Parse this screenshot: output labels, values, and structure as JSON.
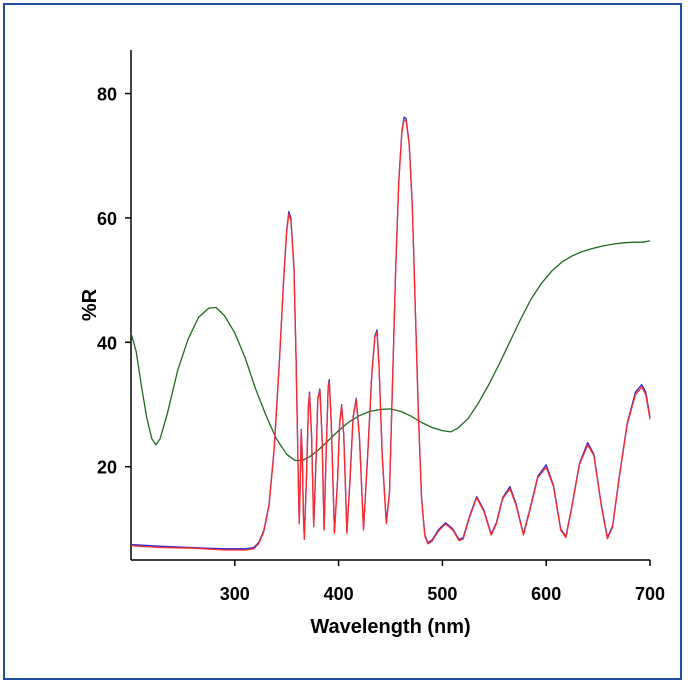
{
  "chart_data": {
    "type": "line",
    "title": "",
    "xlabel": "Wavelength (nm)",
    "ylabel": "%R",
    "xlim": [
      200,
      700
    ],
    "ylim": [
      5,
      87
    ],
    "x_ticks": [
      300,
      400,
      500,
      600,
      700
    ],
    "y_ticks": [
      20,
      40,
      60,
      80
    ],
    "grid": false,
    "colors": {
      "blue": "#2b2bd9",
      "red": "#ff2a2a",
      "green": "#1e6b1e",
      "black": "#222222",
      "frame": "#1f4e9c"
    },
    "series": [
      {
        "color": "#1e6b1e",
        "points": [
          [
            200,
            41.5
          ],
          [
            205,
            38.5
          ],
          [
            210,
            33
          ],
          [
            215,
            28
          ],
          [
            220,
            24.5
          ],
          [
            224,
            23.5
          ],
          [
            228,
            24.5
          ],
          [
            235,
            28.5
          ],
          [
            245,
            35.5
          ],
          [
            255,
            40.5
          ],
          [
            265,
            44
          ],
          [
            275,
            45.5
          ],
          [
            282,
            45.6
          ],
          [
            290,
            44.3
          ],
          [
            300,
            41.5
          ],
          [
            310,
            37.5
          ],
          [
            320,
            32.5
          ],
          [
            330,
            28.3
          ],
          [
            340,
            24.5
          ],
          [
            350,
            22
          ],
          [
            358,
            21
          ],
          [
            365,
            21
          ],
          [
            372,
            21.6
          ],
          [
            380,
            22.6
          ],
          [
            390,
            24.2
          ],
          [
            400,
            25.8
          ],
          [
            410,
            27.2
          ],
          [
            420,
            28.2
          ],
          [
            430,
            28.9
          ],
          [
            440,
            29.2
          ],
          [
            450,
            29.3
          ],
          [
            460,
            28.9
          ],
          [
            470,
            28.1
          ],
          [
            480,
            27.1
          ],
          [
            490,
            26.3
          ],
          [
            500,
            25.8
          ],
          [
            508,
            25.6
          ],
          [
            515,
            26.2
          ],
          [
            525,
            27.8
          ],
          [
            535,
            30.3
          ],
          [
            545,
            33.3
          ],
          [
            555,
            36.6
          ],
          [
            565,
            40.1
          ],
          [
            575,
            43.6
          ],
          [
            585,
            46.8
          ],
          [
            595,
            49.4
          ],
          [
            605,
            51.4
          ],
          [
            615,
            52.9
          ],
          [
            625,
            53.9
          ],
          [
            635,
            54.6
          ],
          [
            645,
            55.1
          ],
          [
            655,
            55.5
          ],
          [
            665,
            55.8
          ],
          [
            675,
            56.0
          ],
          [
            685,
            56.1
          ],
          [
            693,
            56.1
          ],
          [
            700,
            56.3
          ]
        ]
      },
      {
        "color": "#2b2bd9",
        "points": [
          [
            200,
            7.5
          ],
          [
            230,
            7.2
          ],
          [
            260,
            7.0
          ],
          [
            290,
            6.8
          ],
          [
            310,
            6.8
          ],
          [
            318,
            7.0
          ],
          [
            323,
            7.8
          ],
          [
            328,
            9.8
          ],
          [
            333,
            14
          ],
          [
            338,
            23
          ],
          [
            343,
            37
          ],
          [
            347,
            50
          ],
          [
            350,
            58
          ],
          [
            352,
            61
          ],
          [
            354,
            60
          ],
          [
            357,
            52
          ],
          [
            359,
            38
          ],
          [
            361,
            20
          ],
          [
            362,
            11
          ],
          [
            363,
            17
          ],
          [
            364,
            26
          ],
          [
            365,
            22
          ],
          [
            366,
            13
          ],
          [
            367,
            8.5
          ],
          [
            369,
            18
          ],
          [
            371,
            30
          ],
          [
            372,
            32
          ],
          [
            374,
            25
          ],
          [
            376,
            10.5
          ],
          [
            378,
            20
          ],
          [
            380,
            31
          ],
          [
            382,
            32.5
          ],
          [
            384,
            25
          ],
          [
            386,
            10
          ],
          [
            388,
            22
          ],
          [
            390,
            33
          ],
          [
            391,
            34
          ],
          [
            393,
            27
          ],
          [
            396,
            9.5
          ],
          [
            399,
            18
          ],
          [
            401,
            27
          ],
          [
            403,
            30
          ],
          [
            405,
            25
          ],
          [
            408,
            9.5
          ],
          [
            411,
            18
          ],
          [
            414,
            28
          ],
          [
            417,
            31
          ],
          [
            420,
            25
          ],
          [
            424,
            10
          ],
          [
            428,
            22
          ],
          [
            432,
            35
          ],
          [
            435,
            41
          ],
          [
            437,
            42
          ],
          [
            439,
            36
          ],
          [
            442,
            22
          ],
          [
            446,
            11
          ],
          [
            449,
            16
          ],
          [
            452,
            34
          ],
          [
            455,
            52
          ],
          [
            458,
            66
          ],
          [
            461,
            74
          ],
          [
            463,
            76.2
          ],
          [
            465,
            76
          ],
          [
            468,
            72
          ],
          [
            471,
            62
          ],
          [
            474,
            45
          ],
          [
            477,
            28
          ],
          [
            480,
            15
          ],
          [
            483,
            9
          ],
          [
            486,
            7.8
          ],
          [
            490,
            8.2
          ],
          [
            496,
            9.8
          ],
          [
            503,
            11
          ],
          [
            510,
            10
          ],
          [
            516,
            8.3
          ],
          [
            520,
            8.6
          ],
          [
            526,
            12
          ],
          [
            533,
            15.2
          ],
          [
            540,
            13
          ],
          [
            547,
            9.2
          ],
          [
            552,
            11
          ],
          [
            558,
            15
          ],
          [
            565,
            16.8
          ],
          [
            571,
            14
          ],
          [
            578,
            9.2
          ],
          [
            584,
            13
          ],
          [
            592,
            18.5
          ],
          [
            600,
            20.3
          ],
          [
            607,
            17
          ],
          [
            614,
            10
          ],
          [
            619,
            8.8
          ],
          [
            624,
            13
          ],
          [
            632,
            20.5
          ],
          [
            640,
            23.9
          ],
          [
            646,
            22
          ],
          [
            653,
            14
          ],
          [
            659,
            8.6
          ],
          [
            664,
            10.5
          ],
          [
            670,
            18
          ],
          [
            678,
            27
          ],
          [
            686,
            32
          ],
          [
            692,
            33.2
          ],
          [
            696,
            32
          ],
          [
            700,
            28
          ]
        ]
      },
      {
        "color": "#ff2a2a",
        "points": [
          [
            200,
            7.3
          ],
          [
            230,
            7.0
          ],
          [
            260,
            6.9
          ],
          [
            290,
            6.6
          ],
          [
            310,
            6.6
          ],
          [
            318,
            6.8
          ],
          [
            323,
            7.6
          ],
          [
            328,
            9.6
          ],
          [
            333,
            13.8
          ],
          [
            338,
            22.8
          ],
          [
            343,
            36.8
          ],
          [
            347,
            49.8
          ],
          [
            350,
            57.8
          ],
          [
            352,
            60.6
          ],
          [
            354,
            59.6
          ],
          [
            357,
            51.8
          ],
          [
            359,
            37.8
          ],
          [
            361,
            19.8
          ],
          [
            362,
            10.8
          ],
          [
            363,
            16.8
          ],
          [
            364,
            25.8
          ],
          [
            365,
            21.8
          ],
          [
            366,
            12.8
          ],
          [
            367,
            8.3
          ],
          [
            369,
            17.8
          ],
          [
            371,
            29.8
          ],
          [
            372,
            31.8
          ],
          [
            374,
            24.8
          ],
          [
            376,
            10.3
          ],
          [
            378,
            19.8
          ],
          [
            380,
            30.8
          ],
          [
            382,
            32.2
          ],
          [
            384,
            24.8
          ],
          [
            386,
            9.8
          ],
          [
            388,
            21.8
          ],
          [
            390,
            32.8
          ],
          [
            391,
            33.6
          ],
          [
            393,
            26.8
          ],
          [
            396,
            9.3
          ],
          [
            399,
            17.8
          ],
          [
            401,
            26.8
          ],
          [
            403,
            29.8
          ],
          [
            405,
            24.8
          ],
          [
            408,
            9.3
          ],
          [
            411,
            17.8
          ],
          [
            414,
            27.8
          ],
          [
            417,
            30.8
          ],
          [
            420,
            24.8
          ],
          [
            424,
            9.8
          ],
          [
            428,
            21.8
          ],
          [
            432,
            34.8
          ],
          [
            435,
            40.8
          ],
          [
            437,
            41.6
          ],
          [
            439,
            35.8
          ],
          [
            442,
            21.8
          ],
          [
            446,
            10.8
          ],
          [
            449,
            15.8
          ],
          [
            452,
            33.8
          ],
          [
            455,
            51.8
          ],
          [
            458,
            65.8
          ],
          [
            461,
            73.8
          ],
          [
            463,
            75.8
          ],
          [
            465,
            75.6
          ],
          [
            468,
            71.8
          ],
          [
            471,
            61.8
          ],
          [
            474,
            44.8
          ],
          [
            477,
            27.8
          ],
          [
            480,
            14.8
          ],
          [
            483,
            8.8
          ],
          [
            486,
            7.6
          ],
          [
            490,
            8.0
          ],
          [
            496,
            9.6
          ],
          [
            503,
            10.8
          ],
          [
            510,
            9.8
          ],
          [
            516,
            8.1
          ],
          [
            520,
            8.4
          ],
          [
            526,
            11.8
          ],
          [
            533,
            15.0
          ],
          [
            540,
            12.8
          ],
          [
            547,
            9.0
          ],
          [
            552,
            10.8
          ],
          [
            558,
            14.8
          ],
          [
            565,
            16.5
          ],
          [
            571,
            13.8
          ],
          [
            578,
            9.0
          ],
          [
            584,
            12.8
          ],
          [
            592,
            18.3
          ],
          [
            600,
            19.9
          ],
          [
            607,
            16.8
          ],
          [
            614,
            9.8
          ],
          [
            619,
            8.6
          ],
          [
            624,
            12.8
          ],
          [
            632,
            20.3
          ],
          [
            640,
            23.5
          ],
          [
            646,
            21.8
          ],
          [
            653,
            13.8
          ],
          [
            659,
            8.4
          ],
          [
            664,
            10.3
          ],
          [
            670,
            17.8
          ],
          [
            678,
            26.8
          ],
          [
            686,
            31.6
          ],
          [
            692,
            32.8
          ],
          [
            696,
            31.6
          ],
          [
            700,
            27.6
          ]
        ]
      }
    ]
  }
}
